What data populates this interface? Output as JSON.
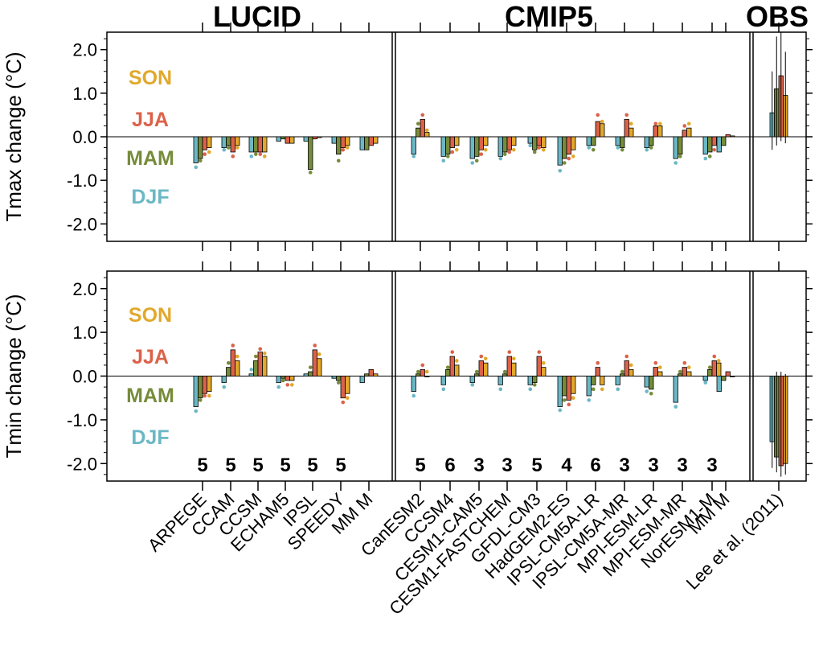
{
  "chart_data": {
    "type": "bar",
    "sections": [
      {
        "title": "LUCID",
        "models": [
          "ARPEGE",
          "CCAM",
          "CCSM",
          "ECHAM5",
          "IPSL",
          "SPEEDY",
          "MM M"
        ]
      },
      {
        "title": "CMIP5",
        "models": [
          "CanESM2",
          "CCSM4",
          "CESM1-CAM5",
          "CESM1-FASTCHEM",
          "GFDL-CM3",
          "HadGEM2-ES",
          "IPSL-CM5A-LR",
          "IPSL-CM5A-MR",
          "MPI-ESM-LR",
          "MPI-ESM-MR",
          "NorESM1-M",
          "MM M"
        ]
      },
      {
        "title": "OBS",
        "models": [
          "Lee et al. (2011)"
        ]
      }
    ],
    "season_labels": [
      "SON",
      "JJA",
      "MAM",
      "DJF"
    ],
    "series_names": [
      "DJF",
      "MAM",
      "JJA",
      "SON"
    ],
    "colors": {
      "DJF": "#6bb7c6",
      "MAM": "#768c3a",
      "JJA": "#db6249",
      "SON": "#e2a82c"
    },
    "ylim": [
      -2.4,
      2.4
    ],
    "yticks": [
      "2.0",
      "1.0",
      "0.0",
      "-1.0",
      "-2.0"
    ],
    "ytick_values": [
      2.0,
      1.0,
      0.0,
      -1.0,
      -2.0
    ],
    "panels": [
      {
        "ylabel": "Tmax change (°C)",
        "values": [
          [
            -0.6,
            -0.5,
            -0.3,
            -0.25
          ],
          [
            -0.25,
            -0.2,
            -0.35,
            -0.2
          ],
          [
            -0.35,
            -0.35,
            -0.35,
            -0.35
          ],
          [
            -0.1,
            -0.05,
            -0.15,
            -0.15
          ],
          [
            -0.1,
            -0.75,
            -0.05,
            -0.02
          ],
          [
            -0.15,
            -0.4,
            -0.25,
            -0.2
          ],
          [
            -0.3,
            -0.3,
            -0.2,
            -0.15
          ],
          [
            -0.4,
            0.2,
            0.4,
            0.1
          ],
          [
            -0.45,
            -0.4,
            -0.25,
            -0.2
          ],
          [
            -0.5,
            -0.45,
            -0.3,
            -0.2
          ],
          [
            -0.45,
            -0.35,
            -0.3,
            -0.2
          ],
          [
            -0.15,
            -0.3,
            -0.2,
            -0.25
          ],
          [
            -0.65,
            -0.5,
            -0.4,
            -0.3
          ],
          [
            -0.2,
            -0.2,
            0.35,
            0.3
          ],
          [
            -0.2,
            -0.25,
            0.4,
            0.2
          ],
          [
            -0.25,
            -0.2,
            0.25,
            0.25
          ],
          [
            -0.5,
            -0.4,
            0.15,
            0.2
          ],
          [
            -0.4,
            -0.35,
            -0.2,
            -0.15
          ],
          [
            -0.35,
            -0.2,
            0.05,
            0.02
          ],
          [
            0.55,
            1.1,
            1.4,
            0.95
          ]
        ],
        "dots": [
          [
            -0.7,
            -0.55,
            -0.4,
            -0.35
          ],
          [
            -0.3,
            -0.25,
            -0.45,
            -0.25
          ],
          [
            -0.45,
            -0.4,
            -0.4,
            -0.45
          ],
          null,
          [
            null,
            -0.82,
            null,
            null
          ],
          [
            null,
            -0.55,
            -0.3,
            -0.25
          ],
          null,
          [
            -0.45,
            0.3,
            0.5,
            0.15
          ],
          [
            -0.55,
            -0.45,
            -0.35,
            -0.3
          ],
          [
            -0.6,
            -0.55,
            -0.4,
            -0.3
          ],
          [
            -0.5,
            -0.4,
            -0.35,
            -0.3
          ],
          [
            -0.2,
            -0.35,
            -0.25,
            -0.3
          ],
          [
            -0.78,
            -0.6,
            -0.5,
            -0.45
          ],
          [
            -0.25,
            -0.3,
            0.5,
            0.35
          ],
          [
            -0.25,
            -0.3,
            0.5,
            0.3
          ],
          [
            -0.3,
            -0.25,
            0.3,
            0.3
          ],
          [
            -0.6,
            -0.45,
            0.25,
            0.3
          ],
          [
            -0.5,
            -0.45,
            -0.3,
            -0.25
          ],
          null,
          null
        ],
        "errbars": [
          null,
          null,
          null,
          null,
          null,
          null,
          null,
          null,
          null,
          null,
          null,
          null,
          null,
          null,
          null,
          null,
          null,
          null,
          null,
          [
            [
              -0.3,
              1.5
            ],
            [
              -0.2,
              2.3
            ],
            [
              -0.1,
              2.4
            ],
            [
              -0.15,
              1.95
            ]
          ]
        ]
      },
      {
        "ylabel": "Tmin change (°C)",
        "values": [
          [
            -0.7,
            -0.5,
            -0.4,
            -0.35
          ],
          [
            -0.15,
            0.2,
            0.6,
            0.35
          ],
          [
            0.05,
            0.35,
            0.55,
            0.45
          ],
          [
            -0.15,
            -0.05,
            -0.1,
            -0.1
          ],
          [
            0.05,
            0.1,
            0.6,
            0.4
          ],
          [
            -0.05,
            -0.1,
            -0.5,
            -0.4
          ],
          [
            -0.15,
            0.05,
            0.15,
            0.05
          ],
          [
            -0.35,
            0.05,
            0.15,
            0.0
          ],
          [
            -0.2,
            0.15,
            0.45,
            0.25
          ],
          [
            -0.15,
            0.05,
            0.35,
            0.3
          ],
          [
            -0.2,
            0.05,
            0.45,
            0.3
          ],
          [
            -0.2,
            -0.15,
            0.45,
            0.2
          ],
          [
            -0.7,
            -0.45,
            -0.55,
            -0.4
          ],
          [
            -0.45,
            -0.2,
            0.2,
            -0.2
          ],
          [
            -0.2,
            0.05,
            0.35,
            0.15
          ],
          [
            -0.25,
            -0.3,
            0.2,
            0.1
          ],
          [
            -0.6,
            0.05,
            0.2,
            0.1
          ],
          [
            -0.1,
            0.15,
            0.35,
            0.3
          ],
          [
            -0.35,
            -0.1,
            0.1,
            0.0
          ],
          [
            -1.5,
            -1.85,
            -2.05,
            -2.0
          ]
        ],
        "dots": [
          [
            -0.8,
            -0.55,
            -0.45,
            -0.45
          ],
          [
            -0.25,
            0.3,
            0.7,
            0.45
          ],
          [
            0.15,
            0.45,
            0.62,
            0.52
          ],
          [
            -0.25,
            -0.1,
            -0.2,
            -0.2
          ],
          [
            null,
            0.2,
            0.7,
            0.5
          ],
          [
            null,
            -0.15,
            -0.6,
            -0.5
          ],
          null,
          [
            -0.45,
            0.1,
            0.25,
            0.1
          ],
          [
            -0.3,
            0.2,
            0.55,
            0.35
          ],
          [
            -0.2,
            0.1,
            0.45,
            0.4
          ],
          [
            -0.3,
            0.1,
            0.55,
            0.4
          ],
          [
            -0.3,
            -0.2,
            0.55,
            0.3
          ],
          [
            -0.78,
            -0.55,
            -0.65,
            -0.5
          ],
          [
            -0.55,
            -0.3,
            0.3,
            -0.3
          ],
          [
            -0.3,
            0.1,
            0.45,
            0.25
          ],
          [
            -0.35,
            -0.4,
            0.3,
            0.2
          ],
          [
            -0.7,
            0.1,
            0.3,
            0.2
          ],
          [
            -0.15,
            0.2,
            0.45,
            0.35
          ],
          null,
          null
        ],
        "errbars": [
          null,
          null,
          null,
          null,
          null,
          null,
          null,
          null,
          null,
          null,
          null,
          null,
          null,
          null,
          null,
          null,
          null,
          null,
          null,
          [
            [
              -2.1,
              0.0
            ],
            [
              -2.2,
              0.1
            ],
            [
              -2.3,
              0.1
            ],
            [
              -2.25,
              0.05
            ]
          ]
        ],
        "counts": [
          "5",
          "5",
          "5",
          "5",
          "5",
          "5",
          "",
          "5",
          "6",
          "3",
          "3",
          "5",
          "4",
          "6",
          "3",
          "3",
          "3",
          "3",
          "",
          ""
        ]
      }
    ]
  }
}
